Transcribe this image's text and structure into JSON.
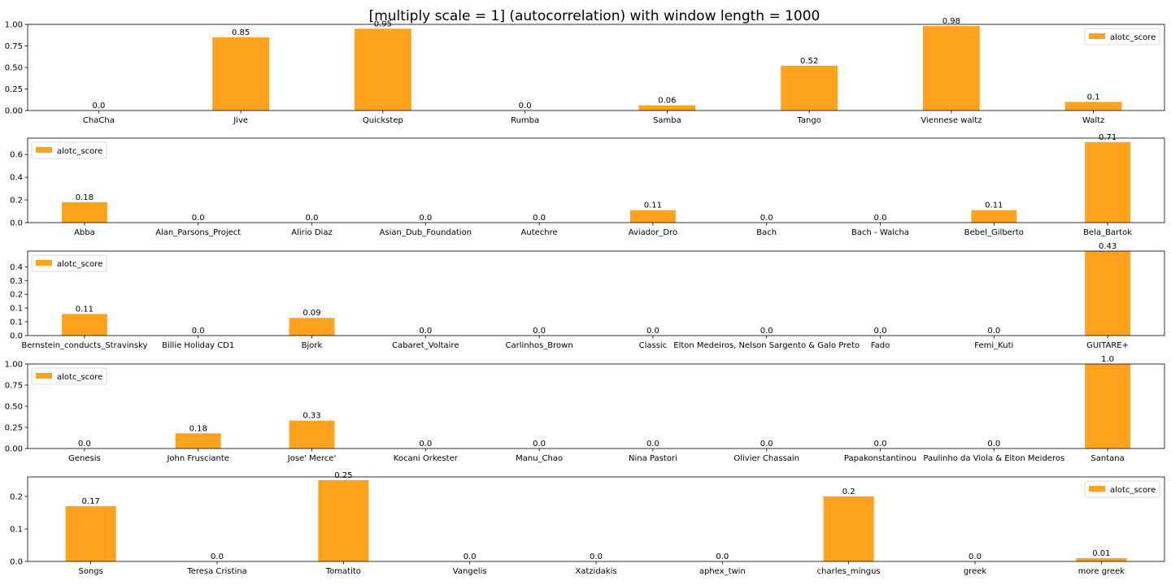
{
  "title": "[multiply scale = 1] (autocorrelation) with window length = 1000",
  "chart_data": [
    {
      "type": "bar",
      "categories": [
        "ChaCha",
        "Jive",
        "Quickstep",
        "Rumba",
        "Samba",
        "Tango",
        "Viennese waltz",
        "Waltz"
      ],
      "series": [
        {
          "name": "alotc_score",
          "values": [
            0.0,
            0.85,
            0.95,
            0.0,
            0.06,
            0.52,
            0.98,
            0.1
          ]
        }
      ],
      "data_labels": [
        "0.0",
        "0.85",
        "0.95",
        "0.0",
        "0.06",
        "0.52",
        "0.98",
        "0.1"
      ],
      "yticks": [
        "0.00",
        "0.25",
        "0.50",
        "0.75",
        "1.00"
      ],
      "ytick_values": [
        0,
        0.25,
        0.5,
        0.75,
        1.0
      ],
      "ylim": [
        0,
        1.0
      ],
      "legend_position": "upper right",
      "bar_color": "#ffa31f",
      "grid": false
    },
    {
      "type": "bar",
      "categories": [
        "Abba",
        "Alan_Parsons_Project",
        "Alirio Diaz",
        "Asian_Dub_Foundation",
        "Autechre",
        "Aviador_Dro",
        "Bach",
        "Bach - Walcha",
        "Bebel_Gilberto",
        "Bela_Bartok"
      ],
      "series": [
        {
          "name": "alotc_score",
          "values": [
            0.18,
            0.0,
            0.0,
            0.0,
            0.0,
            0.11,
            0.0,
            0.0,
            0.11,
            0.71
          ]
        }
      ],
      "data_labels": [
        "0.18",
        "0.0",
        "0.0",
        "0.0",
        "0.0",
        "0.11",
        "0.0",
        "0.0",
        "0.11",
        "0.71"
      ],
      "yticks": [
        "0.0",
        "0.2",
        "0.4",
        "0.6"
      ],
      "ytick_values": [
        0,
        0.2,
        0.4,
        0.6
      ],
      "ylim": [
        0,
        0.745
      ],
      "legend_position": "upper left",
      "bar_color": "#ffa31f",
      "grid": false
    },
    {
      "type": "bar",
      "categories": [
        "Bernstein_conducts_Stravinsky",
        "Billie Holiday CD1",
        "Bjork",
        "Cabaret_Voltaire",
        "Carlinhos_Brown",
        "Classic",
        "Elton Medeiros, Nelson Sargento & Galo Preto",
        "Fado",
        "Femi_Kuti",
        "GUITARE+"
      ],
      "series": [
        {
          "name": "alotc_score",
          "values": [
            0.11,
            0.0,
            0.09,
            0.0,
            0.0,
            0.0,
            0.0,
            0.0,
            0.0,
            0.43
          ]
        }
      ],
      "data_labels": [
        "0.11",
        "0.0",
        "0.09",
        "0.0",
        "0.0",
        "0.0",
        "0.0",
        "0.0",
        "0.0",
        "0.43"
      ],
      "yticks": [
        "0.0",
        "0.1",
        "0.1",
        "0.2",
        "0.3",
        "0.4"
      ],
      "ytick_values": [
        0,
        0.07,
        0.14,
        0.21,
        0.28,
        0.35
      ],
      "ylim": [
        0,
        0.43
      ],
      "legend_position": "upper left",
      "bar_color": "#ffa31f",
      "grid": false
    },
    {
      "type": "bar",
      "categories": [
        "Genesis",
        "John Frusciante",
        "Jose' Merce'",
        "Kocani Orkester",
        "Manu_Chao",
        "Nina Pastori",
        "Olivier Chassain",
        "Papakonstantinou",
        "Paulinho da Viola & Elton Meideros",
        "Santana"
      ],
      "series": [
        {
          "name": "alotc_score",
          "values": [
            0.0,
            0.18,
            0.33,
            0.0,
            0.0,
            0.0,
            0.0,
            0.0,
            0.0,
            1.0
          ]
        }
      ],
      "data_labels": [
        "0.0",
        "0.18",
        "0.33",
        "0.0",
        "0.0",
        "0.0",
        "0.0",
        "0.0",
        "0.0",
        "1.0"
      ],
      "yticks": [
        "0.00",
        "0.25",
        "0.50",
        "0.75",
        "1.00"
      ],
      "ytick_values": [
        0,
        0.25,
        0.5,
        0.75,
        1.0
      ],
      "ylim": [
        0,
        1.0
      ],
      "legend_position": "upper left",
      "bar_color": "#ffa31f",
      "grid": false
    },
    {
      "type": "bar",
      "categories": [
        "Songs",
        "Teresa Cristina",
        "Tomatito",
        "Vangelis",
        "Xatzidakis",
        "aphex_twin",
        "charles_mingus",
        "greek",
        "more greek"
      ],
      "series": [
        {
          "name": "alotc_score",
          "values": [
            0.17,
            0.0,
            0.25,
            0.0,
            0.0,
            0.0,
            0.2,
            0.0,
            0.01
          ]
        }
      ],
      "data_labels": [
        "0.17",
        "0.0",
        "0.25",
        "0.0",
        "0.0",
        "0.0",
        "0.2",
        "0.0",
        "0.01"
      ],
      "yticks": [
        "0.0",
        "0.1",
        "0.2"
      ],
      "ytick_values": [
        0,
        0.1,
        0.2
      ],
      "ylim": [
        0,
        0.26
      ],
      "legend_position": "upper right",
      "bar_color": "#ffa31f",
      "grid": false
    }
  ]
}
